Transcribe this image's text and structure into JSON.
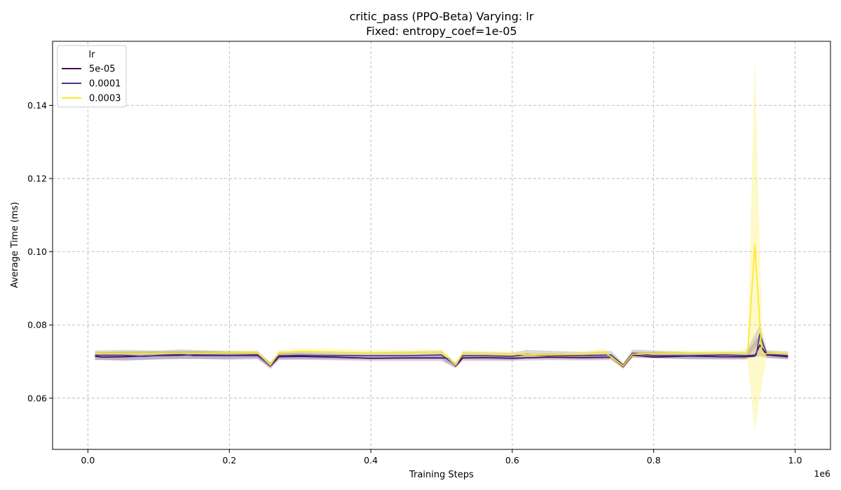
{
  "chart_data": {
    "type": "line",
    "title_line1": "critic_pass (PPO-Beta) Varying: lr",
    "title_line2": "Fixed: entropy_coef=1e-05",
    "xlabel": "Training Steps",
    "ylabel": "Average Time (ms)",
    "x_offset_label": "1e6",
    "xlim": [
      -0.05,
      1.05
    ],
    "ylim": [
      0.046,
      0.1575
    ],
    "x_ticks": [
      0.0,
      0.2,
      0.4,
      0.6,
      0.8,
      1.0
    ],
    "x_tick_labels": [
      "0.0",
      "0.2",
      "0.4",
      "0.6",
      "0.8",
      "1.0"
    ],
    "y_ticks": [
      0.06,
      0.08,
      0.1,
      0.12,
      0.14
    ],
    "y_tick_labels": [
      "0.06",
      "0.08",
      "0.10",
      "0.12",
      "0.14"
    ],
    "grid": true,
    "legend": {
      "title": "lr",
      "placement": "upper-left"
    },
    "series": [
      {
        "name": "5e-05",
        "color": "#440154",
        "band_opacity": 0.2,
        "points": [
          [
            0.01,
            0.0715
          ],
          [
            0.02,
            0.0712
          ],
          [
            0.05,
            0.0713
          ],
          [
            0.08,
            0.0715
          ],
          [
            0.1,
            0.0716
          ],
          [
            0.15,
            0.0718
          ],
          [
            0.2,
            0.0717
          ],
          [
            0.24,
            0.0718
          ],
          [
            0.258,
            0.0688
          ],
          [
            0.27,
            0.0713
          ],
          [
            0.3,
            0.0714
          ],
          [
            0.35,
            0.0712
          ],
          [
            0.4,
            0.0709
          ],
          [
            0.45,
            0.071
          ],
          [
            0.5,
            0.071
          ],
          [
            0.51,
            0.0709
          ],
          [
            0.52,
            0.0688
          ],
          [
            0.53,
            0.071
          ],
          [
            0.56,
            0.0711
          ],
          [
            0.6,
            0.0709
          ],
          [
            0.65,
            0.0712
          ],
          [
            0.7,
            0.0711
          ],
          [
            0.74,
            0.0712
          ],
          [
            0.757,
            0.0686
          ],
          [
            0.77,
            0.0718
          ],
          [
            0.8,
            0.0712
          ],
          [
            0.85,
            0.0715
          ],
          [
            0.9,
            0.0713
          ],
          [
            0.93,
            0.0713
          ],
          [
            0.943,
            0.0715
          ],
          [
            0.95,
            0.0745
          ],
          [
            0.96,
            0.0718
          ],
          [
            0.99,
            0.0713
          ]
        ],
        "band": [
          [
            0.01,
            0.0705,
            0.0725
          ],
          [
            0.05,
            0.0702,
            0.0727
          ],
          [
            0.1,
            0.0706,
            0.0728
          ],
          [
            0.15,
            0.0707,
            0.0729
          ],
          [
            0.2,
            0.0707,
            0.0727
          ],
          [
            0.24,
            0.0709,
            0.0727
          ],
          [
            0.258,
            0.068,
            0.0696
          ],
          [
            0.27,
            0.0704,
            0.0722
          ],
          [
            0.3,
            0.0705,
            0.0724
          ],
          [
            0.4,
            0.0702,
            0.0717
          ],
          [
            0.5,
            0.0702,
            0.0719
          ],
          [
            0.52,
            0.0682,
            0.0695
          ],
          [
            0.53,
            0.0702,
            0.0718
          ],
          [
            0.6,
            0.0702,
            0.0717
          ],
          [
            0.65,
            0.0704,
            0.0722
          ],
          [
            0.7,
            0.0703,
            0.072
          ],
          [
            0.74,
            0.0704,
            0.072
          ],
          [
            0.757,
            0.068,
            0.0693
          ],
          [
            0.77,
            0.071,
            0.0727
          ],
          [
            0.85,
            0.0707,
            0.0724
          ],
          [
            0.93,
            0.0706,
            0.0721
          ],
          [
            0.95,
            0.0715,
            0.0775
          ],
          [
            0.96,
            0.071,
            0.0727
          ],
          [
            0.99,
            0.0706,
            0.072
          ]
        ]
      },
      {
        "name": "0.0001",
        "color": "#3b3b8f",
        "band_opacity": 0.2,
        "points": [
          [
            0.01,
            0.0717
          ],
          [
            0.05,
            0.0717
          ],
          [
            0.08,
            0.0714
          ],
          [
            0.1,
            0.0717
          ],
          [
            0.13,
            0.072
          ],
          [
            0.15,
            0.0716
          ],
          [
            0.2,
            0.0716
          ],
          [
            0.24,
            0.0716
          ],
          [
            0.258,
            0.069
          ],
          [
            0.27,
            0.0716
          ],
          [
            0.3,
            0.0717
          ],
          [
            0.35,
            0.0716
          ],
          [
            0.4,
            0.0716
          ],
          [
            0.45,
            0.0716
          ],
          [
            0.5,
            0.0718
          ],
          [
            0.52,
            0.069
          ],
          [
            0.53,
            0.0716
          ],
          [
            0.56,
            0.0716
          ],
          [
            0.6,
            0.0714
          ],
          [
            0.62,
            0.072
          ],
          [
            0.65,
            0.0716
          ],
          [
            0.7,
            0.0716
          ],
          [
            0.74,
            0.0718
          ],
          [
            0.757,
            0.069
          ],
          [
            0.77,
            0.0723
          ],
          [
            0.8,
            0.0716
          ],
          [
            0.85,
            0.0716
          ],
          [
            0.9,
            0.0718
          ],
          [
            0.93,
            0.0716
          ],
          [
            0.945,
            0.0718
          ],
          [
            0.95,
            0.0775
          ],
          [
            0.96,
            0.072
          ],
          [
            0.99,
            0.0716
          ]
        ],
        "band": [
          [
            0.01,
            0.0704,
            0.073
          ],
          [
            0.05,
            0.0704,
            0.0732
          ],
          [
            0.1,
            0.0706,
            0.073
          ],
          [
            0.13,
            0.0708,
            0.0733
          ],
          [
            0.2,
            0.0705,
            0.0728
          ],
          [
            0.24,
            0.0706,
            0.0727
          ],
          [
            0.258,
            0.0682,
            0.0698
          ],
          [
            0.27,
            0.0706,
            0.0727
          ],
          [
            0.3,
            0.0707,
            0.0728
          ],
          [
            0.4,
            0.0706,
            0.0726
          ],
          [
            0.5,
            0.0707,
            0.0729
          ],
          [
            0.52,
            0.0683,
            0.0697
          ],
          [
            0.53,
            0.0706,
            0.0727
          ],
          [
            0.6,
            0.0704,
            0.0724
          ],
          [
            0.62,
            0.0708,
            0.0732
          ],
          [
            0.7,
            0.0706,
            0.0726
          ],
          [
            0.74,
            0.0707,
            0.0729
          ],
          [
            0.757,
            0.0683,
            0.0697
          ],
          [
            0.77,
            0.0712,
            0.0733
          ],
          [
            0.85,
            0.0706,
            0.0726
          ],
          [
            0.93,
            0.0706,
            0.0727
          ],
          [
            0.95,
            0.0755,
            0.08
          ],
          [
            0.96,
            0.071,
            0.0731
          ],
          [
            0.99,
            0.0706,
            0.0727
          ]
        ]
      },
      {
        "name": "0.0003",
        "color": "#fde725",
        "band_opacity": 0.25,
        "points": [
          [
            0.01,
            0.0722
          ],
          [
            0.05,
            0.0722
          ],
          [
            0.1,
            0.0722
          ],
          [
            0.15,
            0.0722
          ],
          [
            0.2,
            0.0724
          ],
          [
            0.24,
            0.0724
          ],
          [
            0.258,
            0.069
          ],
          [
            0.27,
            0.0724
          ],
          [
            0.3,
            0.0728
          ],
          [
            0.35,
            0.0726
          ],
          [
            0.4,
            0.0724
          ],
          [
            0.45,
            0.0724
          ],
          [
            0.5,
            0.0726
          ],
          [
            0.52,
            0.069
          ],
          [
            0.53,
            0.0722
          ],
          [
            0.56,
            0.072
          ],
          [
            0.6,
            0.072
          ],
          [
            0.65,
            0.0718
          ],
          [
            0.7,
            0.072
          ],
          [
            0.73,
            0.0726
          ],
          [
            0.757,
            0.0688
          ],
          [
            0.77,
            0.072
          ],
          [
            0.8,
            0.0722
          ],
          [
            0.85,
            0.0722
          ],
          [
            0.9,
            0.0722
          ],
          [
            0.933,
            0.0722
          ],
          [
            0.943,
            0.1018
          ],
          [
            0.953,
            0.072
          ],
          [
            0.96,
            0.0722
          ],
          [
            0.99,
            0.0722
          ]
        ],
        "band": [
          [
            0.01,
            0.0714,
            0.073
          ],
          [
            0.05,
            0.0714,
            0.073
          ],
          [
            0.1,
            0.0714,
            0.073
          ],
          [
            0.2,
            0.0716,
            0.0732
          ],
          [
            0.24,
            0.0716,
            0.0732
          ],
          [
            0.258,
            0.0683,
            0.0697
          ],
          [
            0.27,
            0.0716,
            0.0732
          ],
          [
            0.3,
            0.072,
            0.0736
          ],
          [
            0.4,
            0.0716,
            0.0732
          ],
          [
            0.5,
            0.0718,
            0.0734
          ],
          [
            0.52,
            0.0683,
            0.0697
          ],
          [
            0.53,
            0.0714,
            0.073
          ],
          [
            0.6,
            0.0712,
            0.0728
          ],
          [
            0.7,
            0.0712,
            0.0728
          ],
          [
            0.73,
            0.0718,
            0.0736
          ],
          [
            0.757,
            0.0681,
            0.0695
          ],
          [
            0.77,
            0.0712,
            0.0728
          ],
          [
            0.85,
            0.0714,
            0.073
          ],
          [
            0.925,
            0.0714,
            0.073
          ],
          [
            0.933,
            0.07,
            0.0744
          ],
          [
            0.943,
            0.051,
            0.153
          ],
          [
            0.953,
            0.064,
            0.08
          ],
          [
            0.96,
            0.0714,
            0.073
          ],
          [
            0.99,
            0.0714,
            0.073
          ]
        ]
      }
    ]
  }
}
